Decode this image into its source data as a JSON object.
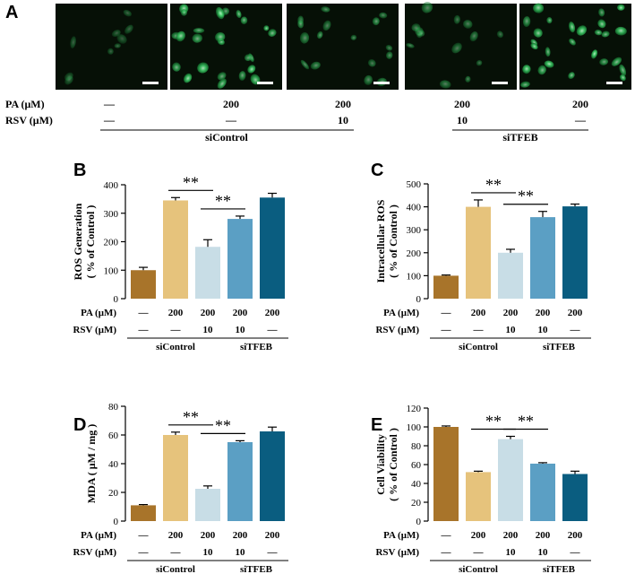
{
  "panel_a": {
    "letter": "A",
    "images": [
      {
        "brightness": 0.15
      },
      {
        "brightness": 0.85
      },
      {
        "brightness": 0.45
      },
      {
        "brightness": 0.35
      },
      {
        "brightness": 0.9
      }
    ],
    "rows": [
      {
        "label": "PA (μM)",
        "values": [
          "—",
          "200",
          "200",
          "200",
          "200"
        ]
      },
      {
        "label": "RSV (μM)",
        "values": [
          "—",
          "—",
          "10",
          "10",
          "—"
        ]
      }
    ],
    "groups": [
      "siControl",
      "siTFEB"
    ]
  },
  "colors": [
    "#a8742a",
    "#e6c37c",
    "#c8dde6",
    "#5b9fc4",
    "#0a5d80"
  ],
  "chart_data": [
    {
      "letter": "B",
      "type": "bar",
      "ylabel_lines": [
        "ROS Generation",
        "( % of Control )"
      ],
      "ylim": [
        0,
        400
      ],
      "ticks": [
        0,
        100,
        200,
        300,
        400
      ],
      "values": [
        100,
        345,
        182,
        280,
        355
      ],
      "errors": [
        10,
        10,
        25,
        10,
        15
      ],
      "significance": [
        {
          "from": 1,
          "to": 2,
          "label": "**"
        },
        {
          "from": 2,
          "to": 3,
          "label": "**"
        }
      ],
      "conditions": [
        {
          "label": "PA (μM)",
          "values": [
            "—",
            "200",
            "200",
            "200",
            "200"
          ]
        },
        {
          "label": "RSV (μM)",
          "values": [
            "—",
            "—",
            "10",
            "10",
            "—"
          ]
        }
      ],
      "groups": [
        "siControl",
        "siTFEB"
      ]
    },
    {
      "letter": "C",
      "type": "bar",
      "ylabel_lines": [
        "Intracellular ROS",
        "( % of Control )"
      ],
      "ylim": [
        0,
        500
      ],
      "ticks": [
        0,
        100,
        200,
        300,
        400,
        500
      ],
      "values": [
        100,
        400,
        200,
        355,
        402
      ],
      "errors": [
        3,
        30,
        15,
        25,
        10
      ],
      "significance": [
        {
          "from": 1,
          "to": 2,
          "label": "**"
        },
        {
          "from": 2,
          "to": 3,
          "label": "**"
        }
      ],
      "conditions": [
        {
          "label": "PA (μM)",
          "values": [
            "—",
            "200",
            "200",
            "200",
            "200"
          ]
        },
        {
          "label": "RSV (μM)",
          "values": [
            "—",
            "—",
            "10",
            "10",
            "—"
          ]
        }
      ],
      "groups": [
        "siControl",
        "siTFEB"
      ]
    },
    {
      "letter": "D",
      "type": "bar",
      "ylabel_lines": [
        "MDA ( μM / mg )"
      ],
      "ylim": [
        0,
        80
      ],
      "ticks": [
        0,
        20,
        40,
        60,
        80
      ],
      "values": [
        11,
        60,
        22.5,
        55,
        62.5
      ],
      "errors": [
        0.5,
        2,
        2,
        1,
        3
      ],
      "significance": [
        {
          "from": 1,
          "to": 2,
          "label": "**"
        },
        {
          "from": 2,
          "to": 3,
          "label": "**"
        }
      ],
      "conditions": [
        {
          "label": "PA (μM)",
          "values": [
            "—",
            "200",
            "200",
            "200",
            "200"
          ]
        },
        {
          "label": "RSV (μM)",
          "values": [
            "—",
            "—",
            "10",
            "10",
            "—"
          ]
        }
      ],
      "groups": [
        "siControl",
        "siTFEB"
      ]
    },
    {
      "letter": "E",
      "type": "bar",
      "ylabel_lines": [
        "Cell Viability",
        "( % of Control )"
      ],
      "ylim": [
        0,
        120
      ],
      "ticks": [
        0,
        20,
        40,
        60,
        80,
        100,
        120
      ],
      "values": [
        100,
        52,
        87,
        61,
        50
      ],
      "errors": [
        1,
        1,
        3,
        1,
        3
      ],
      "significance": [
        {
          "from": 1,
          "to": 2,
          "label": "**"
        },
        {
          "from": 2,
          "to": 3,
          "label": "**"
        }
      ],
      "conditions": [
        {
          "label": "PA (μM)",
          "values": [
            "—",
            "200",
            "200",
            "200",
            "200"
          ]
        },
        {
          "label": "RSV (μM)",
          "values": [
            "—",
            "—",
            "10",
            "10",
            "—"
          ]
        }
      ],
      "groups": [
        "siControl",
        "siTFEB"
      ]
    }
  ]
}
